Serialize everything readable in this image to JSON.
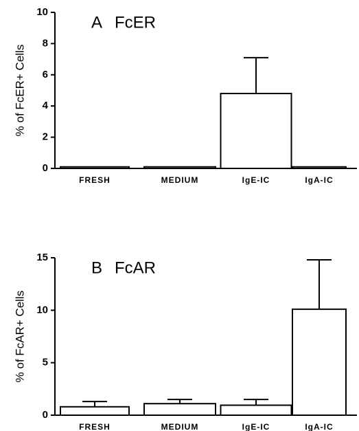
{
  "chart_data": [
    {
      "type": "bar",
      "panel": "A",
      "title": "FcER",
      "y_label": "% of FcER+ Cells",
      "categories": [
        "FRESH",
        "MEDIUM",
        "IgE-IC",
        "IgA-IC"
      ],
      "values": [
        0.1,
        0.1,
        4.8,
        0.1
      ],
      "errors": [
        0,
        0,
        2.3,
        0
      ],
      "color": "#ffffff",
      "ylim": [
        0,
        10
      ],
      "yticks": [
        0,
        2,
        4,
        6,
        8,
        10
      ]
    },
    {
      "type": "bar",
      "panel": "B",
      "title": "FcAR",
      "y_label": "% of FcAR+ Cells",
      "categories": [
        "FRESH",
        "MEDIUM",
        "IgE-IC",
        "IgA-IC"
      ],
      "values": [
        0.8,
        1.1,
        0.95,
        10.1
      ],
      "errors": [
        0.5,
        0.4,
        0.55,
        4.7
      ],
      "color": "#ffffff",
      "ylim": [
        0,
        15
      ],
      "yticks": [
        0,
        5,
        10,
        15
      ]
    }
  ]
}
